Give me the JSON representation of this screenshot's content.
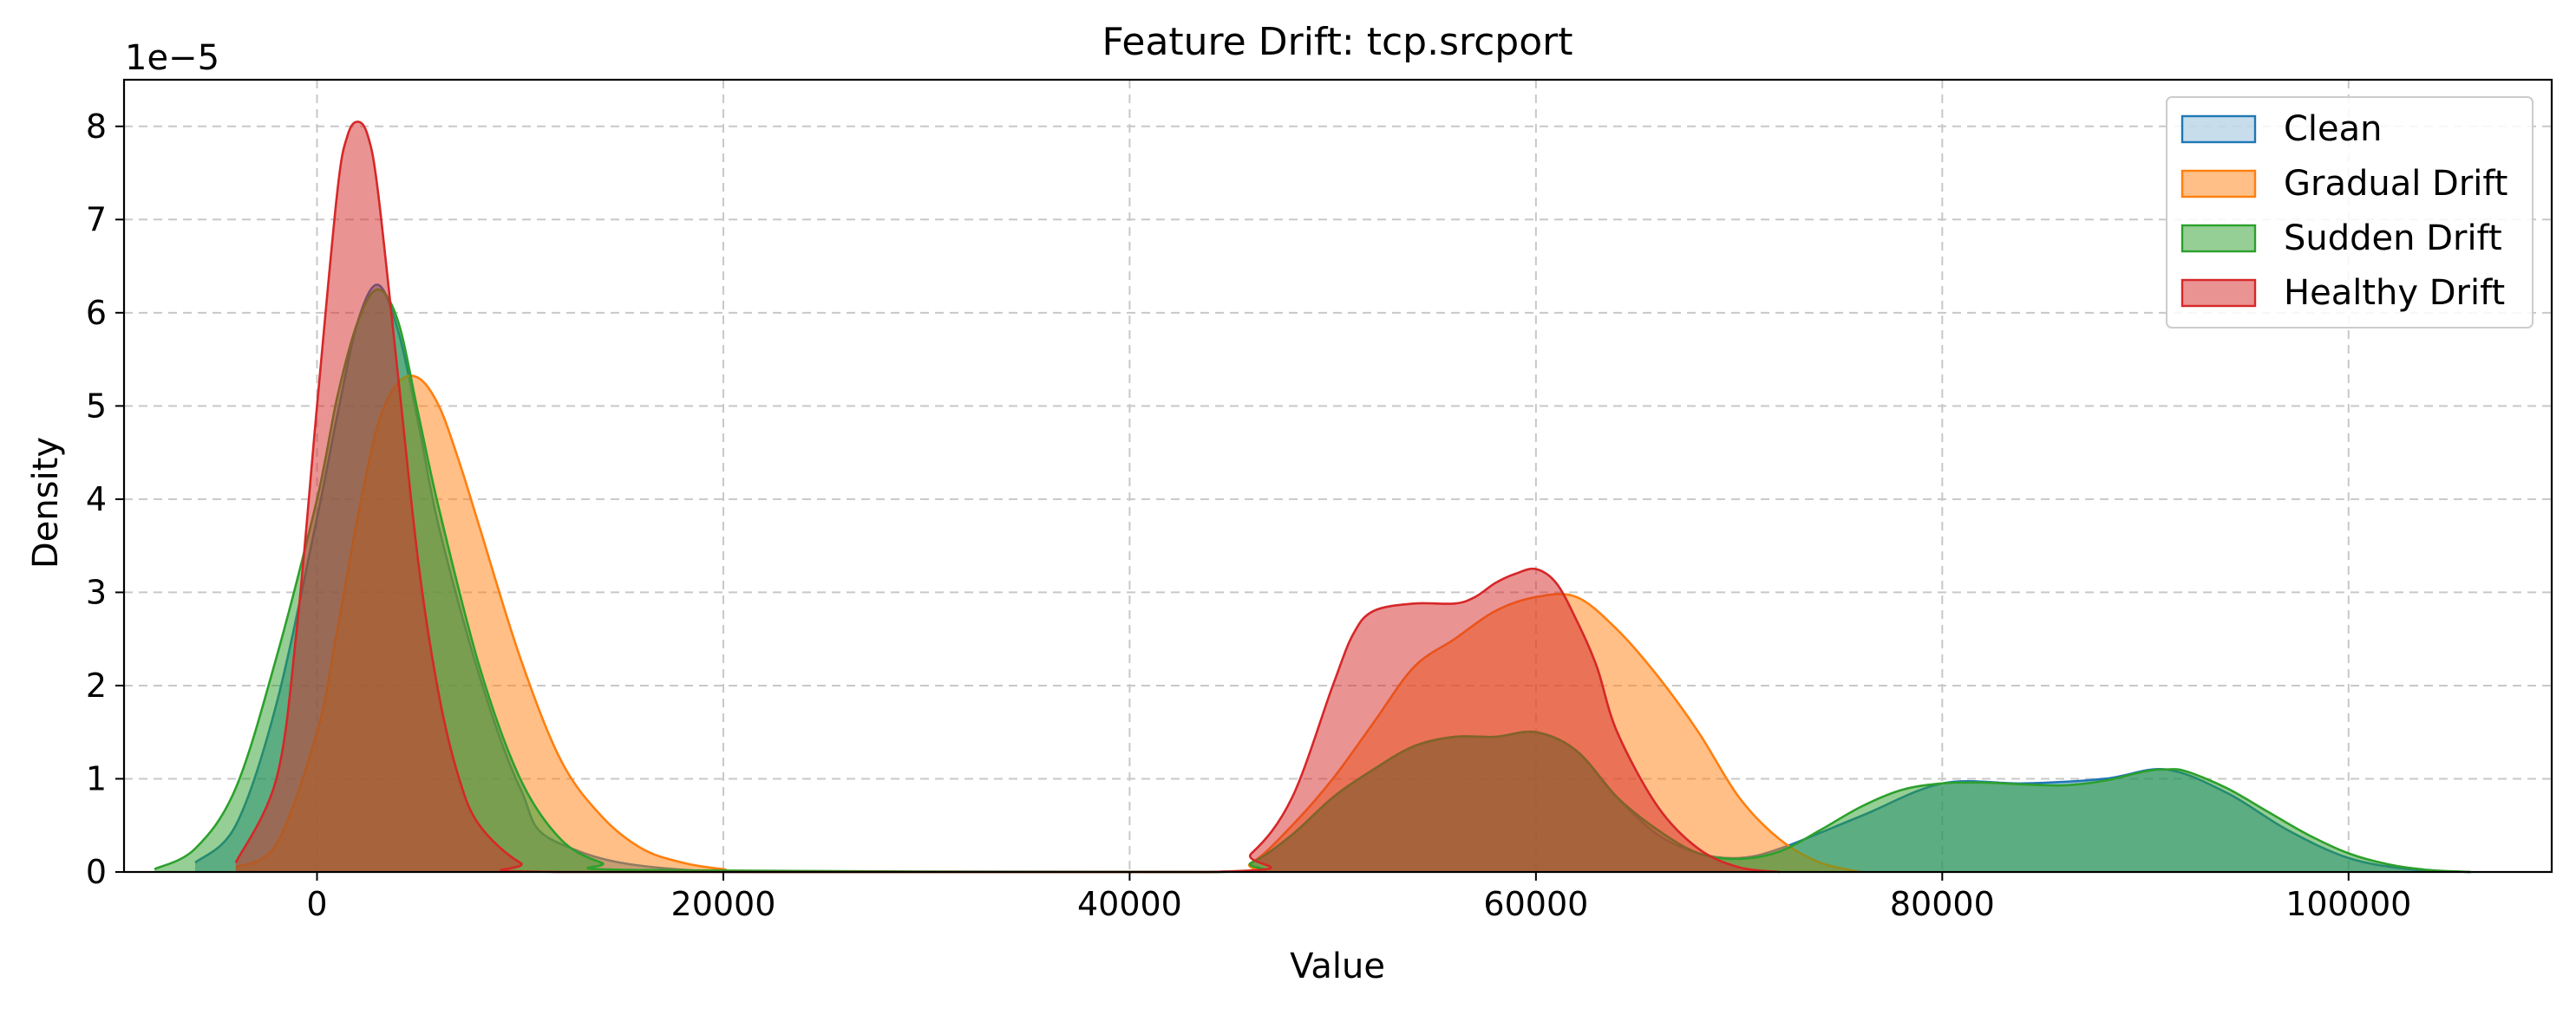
{
  "chart_data": {
    "type": "area",
    "title": "Feature Drift: tcp.srcport",
    "xlabel": "Value",
    "ylabel": "Density",
    "y_scale_label": "1e−5",
    "xlim": [
      -9500,
      110000
    ],
    "ylim": [
      0,
      8.5
    ],
    "x_ticks": [
      0,
      20000,
      40000,
      60000,
      80000,
      100000
    ],
    "x_tick_labels": [
      "0",
      "20000",
      "40000",
      "60000",
      "80000",
      "100000"
    ],
    "y_ticks": [
      0,
      1,
      2,
      3,
      4,
      5,
      6,
      7,
      8
    ],
    "y_tick_labels": [
      "0",
      "1",
      "2",
      "3",
      "4",
      "5",
      "6",
      "7",
      "8"
    ],
    "grid": true,
    "legend_position": "top-right",
    "series": [
      {
        "name": "Clean",
        "color": "#1f77b4",
        "x": [
          -6000,
          -4000,
          -2000,
          0,
          1000,
          2000,
          3000,
          4000,
          5000,
          6000,
          8000,
          10000,
          12000,
          20000,
          44000,
          46000,
          48000,
          50000,
          52000,
          54000,
          56000,
          58000,
          60000,
          62000,
          64000,
          66000,
          68000,
          70000,
          72000,
          76000,
          80000,
          84000,
          88000,
          91000,
          94000,
          97000,
          100000,
          103000,
          106000
        ],
        "y": [
          0.1,
          0.5,
          1.8,
          3.8,
          4.9,
          5.9,
          6.3,
          5.8,
          4.8,
          3.7,
          2.1,
          0.9,
          0.3,
          0.0,
          0.0,
          0.1,
          0.4,
          0.8,
          1.1,
          1.35,
          1.45,
          1.45,
          1.5,
          1.3,
          0.8,
          0.4,
          0.2,
          0.15,
          0.25,
          0.6,
          0.95,
          0.95,
          1.0,
          1.1,
          0.85,
          0.45,
          0.15,
          0.03,
          0.0
        ]
      },
      {
        "name": "Gradual Drift",
        "color": "#ff7f0e",
        "x": [
          -4000,
          -2000,
          0,
          1000,
          2000,
          3000,
          4000,
          5000,
          6000,
          7000,
          8000,
          10000,
          12000,
          14000,
          16000,
          18000,
          20000,
          22000,
          44000,
          46000,
          48000,
          50000,
          52000,
          54000,
          56000,
          58000,
          60000,
          62000,
          64000,
          66000,
          68000,
          70000,
          72000,
          74000,
          76000
        ],
        "y": [
          0.05,
          0.3,
          1.5,
          2.6,
          3.8,
          4.8,
          5.25,
          5.3,
          5.0,
          4.4,
          3.7,
          2.3,
          1.2,
          0.6,
          0.25,
          0.1,
          0.03,
          0.0,
          0.0,
          0.1,
          0.5,
          1.0,
          1.6,
          2.2,
          2.5,
          2.8,
          2.95,
          2.95,
          2.6,
          2.1,
          1.5,
          0.8,
          0.35,
          0.1,
          0.0
        ]
      },
      {
        "name": "Sudden Drift",
        "color": "#2ca02c",
        "x": [
          -8000,
          -6000,
          -4000,
          -2000,
          0,
          1000,
          2000,
          3000,
          4000,
          5000,
          6000,
          8000,
          10000,
          12000,
          14000,
          16000,
          44000,
          46000,
          48000,
          50000,
          52000,
          54000,
          56000,
          58000,
          60000,
          62000,
          64000,
          66000,
          68000,
          70000,
          72000,
          74000,
          76000,
          78000,
          80000,
          82000,
          84000,
          86000,
          88000,
          90000,
          91000,
          92000,
          94000,
          96000,
          98000,
          100000,
          102000,
          104000,
          106000
        ],
        "y": [
          0.03,
          0.25,
          0.9,
          2.3,
          4.0,
          5.1,
          5.9,
          6.25,
          5.9,
          4.9,
          3.9,
          2.2,
          1.0,
          0.35,
          0.1,
          0.02,
          0.0,
          0.1,
          0.4,
          0.8,
          1.1,
          1.35,
          1.45,
          1.45,
          1.5,
          1.3,
          0.8,
          0.45,
          0.2,
          0.14,
          0.22,
          0.45,
          0.7,
          0.88,
          0.95,
          0.96,
          0.94,
          0.93,
          0.98,
          1.08,
          1.1,
          1.08,
          0.9,
          0.65,
          0.4,
          0.2,
          0.08,
          0.02,
          0.0
        ]
      },
      {
        "name": "Healthy Drift",
        "color": "#d62728",
        "x": [
          -4000,
          -2000,
          -1000,
          0,
          1000,
          1500,
          2000,
          2500,
          3000,
          4000,
          5000,
          6000,
          7000,
          8000,
          10000,
          12000,
          44000,
          46000,
          48000,
          50000,
          51000,
          52000,
          54000,
          56000,
          57000,
          58000,
          59000,
          60000,
          61000,
          62000,
          63000,
          64000,
          66000,
          68000,
          70000,
          72000
        ],
        "y": [
          0.1,
          1.0,
          2.6,
          5.0,
          7.3,
          7.9,
          8.05,
          7.9,
          7.3,
          5.3,
          3.3,
          1.9,
          1.0,
          0.5,
          0.1,
          0.0,
          0.0,
          0.2,
          0.8,
          2.0,
          2.55,
          2.8,
          2.88,
          2.88,
          2.95,
          3.1,
          3.2,
          3.25,
          3.1,
          2.7,
          2.2,
          1.5,
          0.7,
          0.25,
          0.05,
          0.0
        ]
      }
    ]
  }
}
